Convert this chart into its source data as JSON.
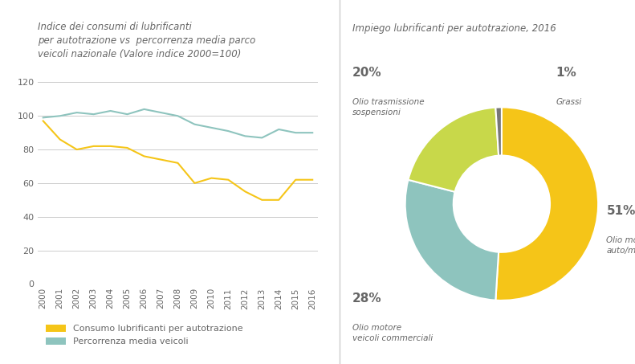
{
  "line_title": "Indice dei consumi di lubrificanti\nper autotrazione vs  percorrenza media parco\nveicoli nazionale (Valore indice 2000=100)",
  "donut_title": "Impiego lubrificanti per autotrazione, 2016",
  "years": [
    2000,
    2001,
    2002,
    2003,
    2004,
    2005,
    2006,
    2007,
    2008,
    2009,
    2010,
    2011,
    2012,
    2013,
    2014,
    2015,
    2016
  ],
  "consumo": [
    97,
    86,
    80,
    82,
    82,
    81,
    76,
    74,
    72,
    60,
    63,
    62,
    55,
    50,
    50,
    62,
    62
  ],
  "percorrenza": [
    99,
    100,
    102,
    101,
    103,
    101,
    104,
    102,
    100,
    95,
    93,
    91,
    88,
    87,
    92,
    90,
    90
  ],
  "consumo_color": "#f5c518",
  "percorrenza_color": "#8ec4be",
  "consumo_label": "Consumo lubrificanti per autotrazione",
  "percorrenza_label": "Percorrenza media veicoli",
  "yticks": [
    0,
    20,
    40,
    60,
    80,
    100,
    120
  ],
  "donut_values": [
    51,
    28,
    20,
    1
  ],
  "donut_colors": [
    "#f5c518",
    "#8ec4be",
    "#c8d84a",
    "#777777"
  ],
  "donut_labels_pct": [
    "51%",
    "28%",
    "20%",
    "1%"
  ],
  "donut_labels_name": [
    "Olio motore\nauto/moto",
    "Olio motore\nveicoli commerciali",
    "Olio trasmissione\nsospensioni",
    "Grassi"
  ],
  "background_color": "#ffffff",
  "text_color": "#666666",
  "grid_color": "#cccccc",
  "divider_color": "#cccccc"
}
